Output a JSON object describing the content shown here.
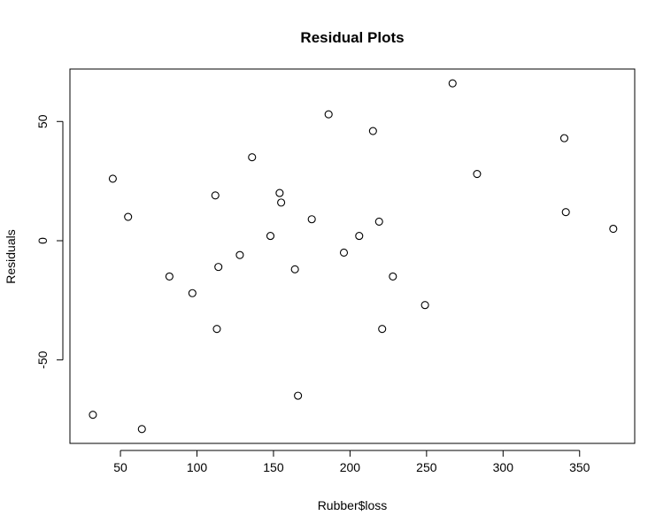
{
  "chart_data": {
    "type": "scatter",
    "title": "Residual Plots",
    "xlabel": "Rubber$loss",
    "ylabel": "Residuals",
    "xlim": [
      17,
      386
    ],
    "ylim": [
      -85,
      72
    ],
    "xticks": [
      50,
      100,
      150,
      200,
      250,
      300,
      350
    ],
    "yticks": [
      -50,
      0,
      50
    ],
    "xtick_labels": [
      "50",
      "100",
      "150",
      "200",
      "250",
      "300",
      "350"
    ],
    "ytick_labels": [
      "-50",
      "0",
      "50"
    ],
    "grid": false,
    "marker": "open-circle",
    "points": [
      {
        "x": 32,
        "y": -73
      },
      {
        "x": 45,
        "y": 26
      },
      {
        "x": 55,
        "y": 10
      },
      {
        "x": 64,
        "y": -79
      },
      {
        "x": 82,
        "y": -15
      },
      {
        "x": 97,
        "y": -22
      },
      {
        "x": 112,
        "y": 19
      },
      {
        "x": 113,
        "y": -37
      },
      {
        "x": 114,
        "y": -11
      },
      {
        "x": 128,
        "y": -6
      },
      {
        "x": 136,
        "y": 35
      },
      {
        "x": 148,
        "y": 2
      },
      {
        "x": 154,
        "y": 20
      },
      {
        "x": 155,
        "y": 16
      },
      {
        "x": 164,
        "y": -12
      },
      {
        "x": 166,
        "y": -65
      },
      {
        "x": 175,
        "y": 9
      },
      {
        "x": 186,
        "y": 53
      },
      {
        "x": 196,
        "y": -5
      },
      {
        "x": 206,
        "y": 2
      },
      {
        "x": 215,
        "y": 46
      },
      {
        "x": 219,
        "y": 8
      },
      {
        "x": 221,
        "y": -37
      },
      {
        "x": 228,
        "y": -15
      },
      {
        "x": 249,
        "y": -27
      },
      {
        "x": 267,
        "y": 66
      },
      {
        "x": 283,
        "y": 28
      },
      {
        "x": 340,
        "y": 43
      },
      {
        "x": 341,
        "y": 12
      },
      {
        "x": 372,
        "y": 5
      }
    ]
  }
}
